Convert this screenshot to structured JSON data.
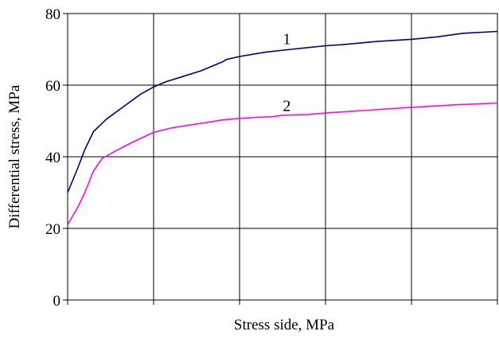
{
  "chart_data": {
    "type": "line",
    "title": "",
    "xlabel": "Stress side,  MPa",
    "ylabel": "Differential stress, MPa",
    "xlim": [
      0,
      5
    ],
    "ylim": [
      0,
      80
    ],
    "yticks": [
      0,
      20,
      40,
      60,
      80
    ],
    "xtick_labels": [],
    "grid": true,
    "series": [
      {
        "name": "1",
        "color": "#000080",
        "x": [
          0,
          0.12,
          0.2,
          0.3,
          0.45,
          0.65,
          0.85,
          1.0,
          1.15,
          1.35,
          1.55,
          1.8,
          1.85,
          2.0,
          2.3,
          2.6,
          3.0,
          3.2,
          3.6,
          4.0,
          4.3,
          4.6,
          5.0
        ],
        "values": [
          30,
          37,
          42,
          47,
          50.5,
          54,
          57.5,
          59.5,
          61,
          62.5,
          64,
          66.5,
          67.2,
          68,
          69.2,
          70,
          71,
          71.3,
          72.2,
          72.8,
          73.5,
          74.5,
          75
        ]
      },
      {
        "name": "2",
        "color": "#ff00ff",
        "x": [
          0,
          0.12,
          0.2,
          0.3,
          0.4,
          0.55,
          0.75,
          1.0,
          1.2,
          1.4,
          1.6,
          1.8,
          2.0,
          2.2,
          2.4,
          2.5,
          2.8,
          3.0,
          3.5,
          4.0,
          4.5,
          5.0
        ],
        "values": [
          21,
          26,
          30,
          36,
          39.5,
          41.5,
          44,
          46.8,
          48,
          48.8,
          49.5,
          50.3,
          50.7,
          51,
          51.2,
          51.6,
          51.8,
          52.2,
          53,
          53.8,
          54.5,
          55
        ]
      }
    ],
    "annotations": [
      {
        "text": "1",
        "x": 2.55,
        "y": 71.5
      },
      {
        "text": "2",
        "x": 2.55,
        "y": 52.8
      }
    ]
  }
}
